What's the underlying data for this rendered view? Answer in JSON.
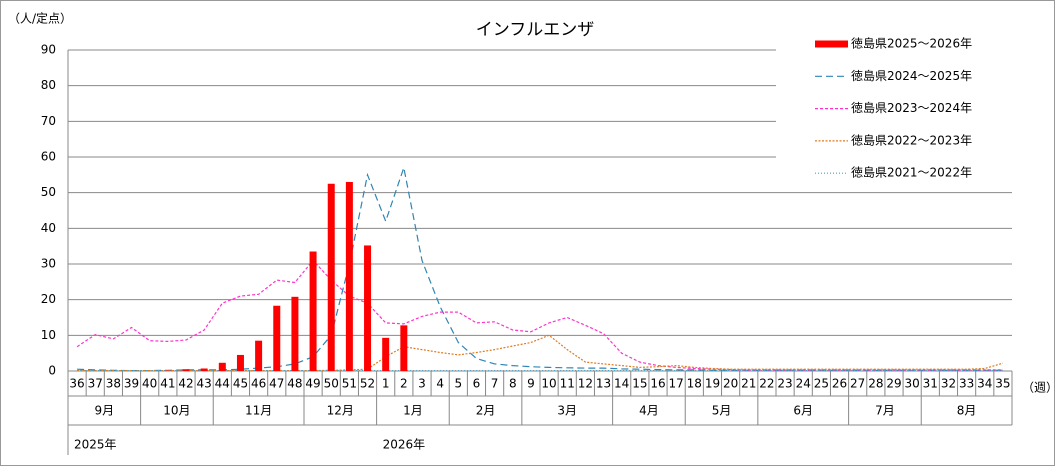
{
  "chart_data": {
    "type": "bar_line",
    "title": "インフルエンザ",
    "y_label": "（人/定点）",
    "x_label": "（週）",
    "categories": [
      "36",
      "37",
      "38",
      "39",
      "40",
      "41",
      "42",
      "43",
      "44",
      "45",
      "46",
      "47",
      "48",
      "49",
      "50",
      "51",
      "52",
      "1",
      "2",
      "3",
      "4",
      "5",
      "6",
      "7",
      "8",
      "9",
      "10",
      "11",
      "12",
      "13",
      "14",
      "15",
      "16",
      "17",
      "18",
      "19",
      "20",
      "21",
      "22",
      "23",
      "24",
      "25",
      "26",
      "27",
      "28",
      "29",
      "30",
      "31",
      "32",
      "33",
      "34",
      "35"
    ],
    "month_groups": [
      {
        "label": "9月",
        "from": "36",
        "to": "39"
      },
      {
        "label": "10月",
        "from": "40",
        "to": "43"
      },
      {
        "label": "11月",
        "from": "44",
        "to": "48"
      },
      {
        "label": "12月",
        "from": "49",
        "to": "52"
      },
      {
        "label": "1月",
        "from": "1",
        "to": "4"
      },
      {
        "label": "2月",
        "from": "5",
        "to": "8"
      },
      {
        "label": "3月",
        "from": "9",
        "to": "13"
      },
      {
        "label": "4月",
        "from": "14",
        "to": "17"
      },
      {
        "label": "5月",
        "from": "18",
        "to": "21"
      },
      {
        "label": "6月",
        "from": "22",
        "to": "26"
      },
      {
        "label": "7月",
        "from": "27",
        "to": "30"
      },
      {
        "label": "8月",
        "from": "31",
        "to": "35"
      }
    ],
    "year_labels": [
      {
        "label": "2025年",
        "at": "36"
      },
      {
        "label": "2026年",
        "at": "1"
      }
    ],
    "ylim": [
      0,
      90
    ],
    "yticks": [
      0,
      10,
      20,
      30,
      40,
      50,
      60,
      70,
      80,
      90
    ],
    "grid": true,
    "legend": "upper right",
    "series": [
      {
        "name": "徳島県2025～2026年",
        "kind": "bar",
        "color": "#ff0000",
        "values": [
          0,
          0,
          0,
          0,
          0,
          0.1,
          0.5,
          0.7,
          2.3,
          4.5,
          8.5,
          18.3,
          20.8,
          33.5,
          52.5,
          53,
          35.2,
          9.3,
          12.8,
          null,
          null,
          null,
          null,
          null,
          null,
          null,
          null,
          null,
          null,
          null,
          null,
          null,
          null,
          null,
          null,
          null,
          null,
          null,
          null,
          null,
          null,
          null,
          null,
          null,
          null,
          null,
          null,
          null,
          null,
          null,
          null,
          null
        ]
      },
      {
        "name": "徳島県2024～2025年",
        "kind": "line",
        "style": "dashed",
        "color": "#2e86b5",
        "values": [
          0.5,
          0.3,
          0.2,
          0.1,
          0.1,
          0.2,
          0.3,
          0.3,
          0.3,
          0.5,
          0.8,
          1.2,
          2,
          4,
          10,
          30,
          55,
          42,
          57,
          31,
          18,
          8,
          3.5,
          2,
          1.5,
          1.2,
          1,
          0.9,
          0.8,
          0.8,
          0.6,
          0.5,
          0.4,
          0.3,
          0.3,
          0.2,
          0.2,
          0.2,
          0.2,
          0.2,
          0.2,
          0.2,
          0.2,
          0.2,
          0.2,
          0.2,
          0.2,
          0.2,
          0.2,
          0.2,
          0.2,
          0.2
        ]
      },
      {
        "name": "徳島県2023～2024年",
        "kind": "line",
        "style": "dotted-dash",
        "color": "#ff33cc",
        "values": [
          6.8,
          10.2,
          9,
          12.2,
          8.5,
          8.3,
          8.7,
          11.5,
          19,
          21,
          21.5,
          25.5,
          24.8,
          31,
          25.5,
          21,
          19,
          13.5,
          13.2,
          15.3,
          16.5,
          16.5,
          13.5,
          13.8,
          11.5,
          11,
          13.5,
          15,
          12.8,
          10.5,
          5,
          2.5,
          1.5,
          1,
          0.7,
          0.5,
          0.4,
          0.3,
          0.3,
          0.3,
          0.3,
          0.3,
          0.3,
          0.3,
          0.3,
          0.3,
          0.3,
          0.3,
          0.3,
          0.3,
          0.3,
          0.3
        ]
      },
      {
        "name": "徳島県2022～2023年",
        "kind": "line",
        "style": "fine-dash",
        "color": "#e07b20",
        "values": [
          0.1,
          0.1,
          0.1,
          0.1,
          0.1,
          0.1,
          0.1,
          0.1,
          0.1,
          0.1,
          0.1,
          0.1,
          0.1,
          0.1,
          0.2,
          0.3,
          0.5,
          4,
          6.8,
          6,
          5.2,
          4.5,
          5.2,
          6,
          7,
          8,
          10,
          6,
          2.5,
          2,
          1.5,
          1,
          1.2,
          1.5,
          1,
          0.7,
          0.5,
          0.5,
          0.5,
          0.5,
          0.5,
          0.5,
          0.5,
          0.5,
          0.5,
          0.5,
          0.5,
          0.5,
          0.5,
          0.5,
          0.7,
          2.2
        ]
      },
      {
        "name": "徳島県2021～2022年",
        "kind": "line",
        "style": "dots",
        "color": "#4aa3c8",
        "values": [
          0.1,
          0.1,
          0.1,
          0.1,
          0.1,
          0.1,
          0.1,
          0.1,
          0.1,
          0.1,
          0.1,
          0.1,
          0.1,
          0.1,
          0.1,
          0.1,
          0.1,
          0.1,
          0.1,
          0.1,
          0.1,
          0.1,
          0.1,
          0.1,
          0.1,
          0.1,
          0.1,
          0.1,
          0.1,
          0.1,
          0.1,
          0.1,
          0.1,
          0.1,
          0.1,
          0.1,
          0.1,
          0.1,
          0.1,
          0.1,
          0.1,
          0.1,
          0.1,
          0.1,
          0.1,
          0.1,
          0.1,
          0.1,
          0.1,
          0.1,
          0.1,
          0.1
        ]
      }
    ]
  }
}
